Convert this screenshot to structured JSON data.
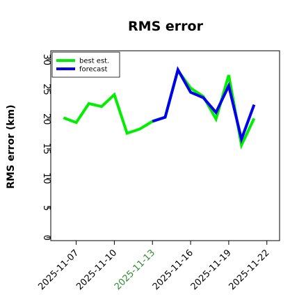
{
  "chart_data": {
    "type": "line",
    "title": "RMS error",
    "xlabel": "",
    "ylabel": "RMS error (km)",
    "ylim": [
      -0.5,
      31.5
    ],
    "xlim": [
      "2025-11-05",
      "2025-11-23"
    ],
    "grid": false,
    "legend_position": "top-left",
    "x_ticks": [
      {
        "label": "2025-11-07",
        "color": "#000000"
      },
      {
        "label": "2025-11-10",
        "color": "#000000"
      },
      {
        "label": "2025-11-13",
        "color": "#2e8b2e"
      },
      {
        "label": "2025-11-16",
        "color": "#000000"
      },
      {
        "label": "2025-11-19",
        "color": "#000000"
      },
      {
        "label": "2025-11-22",
        "color": "#000000"
      }
    ],
    "y_ticks": [
      0,
      5,
      10,
      15,
      20,
      25,
      30
    ],
    "series": [
      {
        "name": "best est.",
        "color": "#00ee00",
        "x": [
          "2025-11-06",
          "2025-11-07",
          "2025-11-08",
          "2025-11-09",
          "2025-11-10",
          "2025-11-11",
          "2025-11-12",
          "2025-11-13",
          "2025-11-14",
          "2025-11-15",
          "2025-11-16",
          "2025-11-17",
          "2025-11-18",
          "2025-11-19",
          "2025-11-20",
          "2025-11-21"
        ],
        "values": [
          20.2,
          19.4,
          22.6,
          22.1,
          24.1,
          17.6,
          18.3,
          19.6,
          20.3,
          28.2,
          25.2,
          23.8,
          20.0,
          27.4,
          15.6,
          20.1
        ]
      },
      {
        "name": "forecast",
        "color": "#0000ee",
        "x": [
          "2025-11-13",
          "2025-11-14",
          "2025-11-15",
          "2025-11-16",
          "2025-11-17",
          "2025-11-18",
          "2025-11-19",
          "2025-11-20",
          "2025-11-21"
        ],
        "values": [
          19.6,
          20.3,
          28.3,
          24.5,
          23.6,
          21.1,
          25.6,
          16.6,
          22.4
        ]
      }
    ]
  }
}
